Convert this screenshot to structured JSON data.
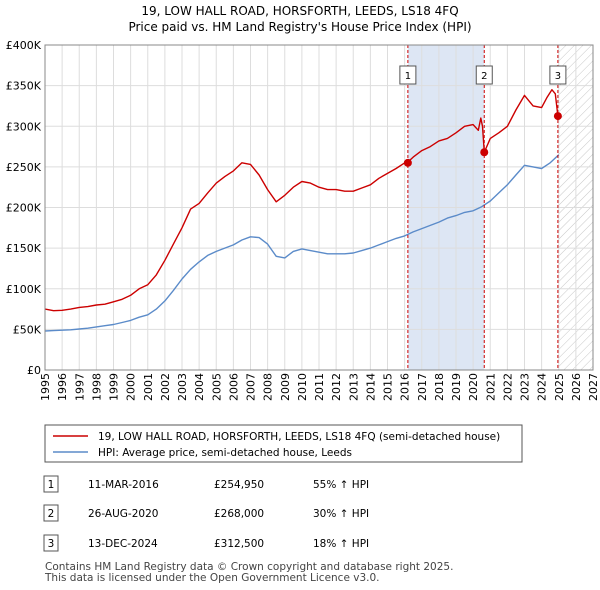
{
  "chart_data": {
    "type": "line",
    "title": "19, LOW HALL ROAD, HORSFORTH, LEEDS, LS18 4FQ",
    "subtitle": "Price paid vs. HM Land Registry's House Price Index (HPI)",
    "xlim": [
      1995,
      2027
    ],
    "ylim": [
      0,
      400000
    ],
    "x_ticks": [
      1995,
      1996,
      1997,
      1998,
      1999,
      2000,
      2001,
      2002,
      2003,
      2004,
      2005,
      2006,
      2007,
      2008,
      2009,
      2010,
      2011,
      2012,
      2013,
      2014,
      2015,
      2016,
      2017,
      2018,
      2019,
      2020,
      2021,
      2022,
      2023,
      2024,
      2025,
      2026,
      2027
    ],
    "x_tick_labels": [
      "1995",
      "1996",
      "1997",
      "1998",
      "1999",
      "2000",
      "2001",
      "2002",
      "2003",
      "2004",
      "2005",
      "2006",
      "2007",
      "2008",
      "2009",
      "2010",
      "2011",
      "2012",
      "2013",
      "2014",
      "2015",
      "2016",
      "2017",
      "2018",
      "2019",
      "2020",
      "2021",
      "2022",
      "2023",
      "2024",
      "2025",
      "2026",
      "2027"
    ],
    "y_ticks": [
      0,
      50000,
      100000,
      150000,
      200000,
      250000,
      300000,
      350000,
      400000
    ],
    "y_tick_labels": [
      "£0",
      "£50K",
      "£100K",
      "£150K",
      "£200K",
      "£250K",
      "£300K",
      "£350K",
      "£400K"
    ],
    "grid": true,
    "future_hatch_start": 2025.0,
    "series": [
      {
        "name": "19, LOW HALL ROAD, HORSFORTH, LEEDS, LS18 4FQ (semi-detached house)",
        "color": "#cc0000",
        "x": [
          1995.0,
          1995.5,
          1996.0,
          1996.5,
          1997.0,
          1997.5,
          1998.0,
          1998.5,
          1999.0,
          1999.5,
          2000.0,
          2000.5,
          2001.0,
          2001.5,
          2002.0,
          2002.5,
          2003.0,
          2003.5,
          2004.0,
          2004.5,
          2005.0,
          2005.5,
          2006.0,
          2006.5,
          2007.0,
          2007.5,
          2008.0,
          2008.5,
          2009.0,
          2009.5,
          2010.0,
          2010.5,
          2011.0,
          2011.5,
          2012.0,
          2012.5,
          2013.0,
          2013.5,
          2014.0,
          2014.5,
          2015.0,
          2015.5,
          2016.0,
          2016.19,
          2016.5,
          2017.0,
          2017.5,
          2018.0,
          2018.5,
          2019.0,
          2019.5,
          2020.0,
          2020.3,
          2020.45,
          2020.55,
          2020.65,
          2021.0,
          2021.5,
          2022.0,
          2022.5,
          2023.0,
          2023.5,
          2024.0,
          2024.3,
          2024.6,
          2024.8,
          2024.95
        ],
        "values": [
          75000,
          73000,
          73500,
          75000,
          77000,
          78000,
          80000,
          81000,
          84000,
          87000,
          92000,
          100000,
          105000,
          117000,
          135000,
          155000,
          175000,
          198000,
          205000,
          218000,
          230000,
          238000,
          245000,
          255000,
          253000,
          240000,
          222000,
          207000,
          215000,
          225000,
          232000,
          230000,
          225000,
          222000,
          222000,
          220000,
          220000,
          224000,
          228000,
          236000,
          242000,
          248000,
          254950,
          256000,
          262000,
          270000,
          275000,
          282000,
          285000,
          292000,
          300000,
          302000,
          295000,
          310000,
          300000,
          268000,
          285000,
          292000,
          300000,
          320000,
          338000,
          325000,
          323000,
          335000,
          345000,
          340000,
          312500
        ]
      },
      {
        "name": "HPI: Average price, semi-detached house, Leeds",
        "color": "#5b8bc9",
        "x": [
          1995.0,
          1995.5,
          1996.0,
          1996.5,
          1997.0,
          1997.5,
          1998.0,
          1998.5,
          1999.0,
          1999.5,
          2000.0,
          2000.5,
          2001.0,
          2001.5,
          2002.0,
          2002.5,
          2003.0,
          2003.5,
          2004.0,
          2004.5,
          2005.0,
          2005.5,
          2006.0,
          2006.5,
          2007.0,
          2007.5,
          2008.0,
          2008.5,
          2009.0,
          2009.5,
          2010.0,
          2010.5,
          2011.0,
          2011.5,
          2012.0,
          2012.5,
          2013.0,
          2013.5,
          2014.0,
          2014.5,
          2015.0,
          2015.5,
          2016.0,
          2016.5,
          2017.0,
          2017.5,
          2018.0,
          2018.5,
          2019.0,
          2019.5,
          2020.0,
          2020.5,
          2021.0,
          2021.5,
          2022.0,
          2022.5,
          2023.0,
          2023.5,
          2024.0,
          2024.5,
          2025.0
        ],
        "values": [
          48000,
          48500,
          49000,
          49500,
          50500,
          51500,
          53000,
          54500,
          56000,
          58500,
          61000,
          65000,
          68000,
          75000,
          85000,
          98000,
          112000,
          124000,
          133000,
          141000,
          146000,
          150000,
          154000,
          160000,
          164000,
          163000,
          155000,
          140000,
          138000,
          146000,
          149000,
          147000,
          145000,
          143000,
          143000,
          143000,
          144000,
          147000,
          150000,
          154000,
          158000,
          162000,
          165000,
          170000,
          174000,
          178000,
          182000,
          187000,
          190000,
          194000,
          196000,
          201000,
          208000,
          218000,
          228000,
          240000,
          252000,
          250000,
          248000,
          255000,
          265000
        ]
      }
    ],
    "sales": [
      {
        "label": "1",
        "x": 2016.19,
        "value": 254950
      },
      {
        "label": "2",
        "x": 2020.65,
        "value": 268000
      },
      {
        "label": "3",
        "x": 2024.95,
        "value": 312500
      }
    ]
  },
  "legend": {
    "property_label": "19, LOW HALL ROAD, HORSFORTH, LEEDS, LS18 4FQ (semi-detached house)",
    "hpi_label": "HPI: Average price, semi-detached house, Leeds"
  },
  "sales_table": [
    {
      "num": "1",
      "date": "11-MAR-2016",
      "price": "£254,950",
      "hpi": "55% ↑ HPI"
    },
    {
      "num": "2",
      "date": "26-AUG-2020",
      "price": "£268,000",
      "hpi": "30% ↑ HPI"
    },
    {
      "num": "3",
      "date": "13-DEC-2024",
      "price": "£312,500",
      "hpi": "18% ↑ HPI"
    }
  ],
  "footer": {
    "line1": "Contains HM Land Registry data © Crown copyright and database right 2025.",
    "line2": "This data is licensed under the Open Government Licence v3.0."
  },
  "colors": {
    "property": "#cc0000",
    "hpi": "#5b8bc9",
    "marker_line": "#cc0000",
    "grid": "#dddddd",
    "highlight": "#dde6f4"
  }
}
